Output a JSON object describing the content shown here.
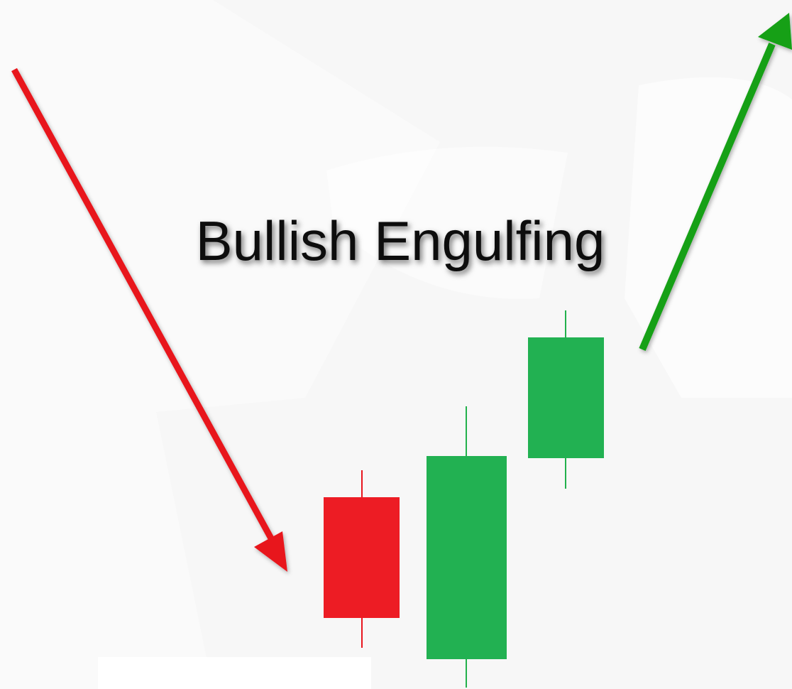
{
  "title": "Bullish Engulfing"
}
